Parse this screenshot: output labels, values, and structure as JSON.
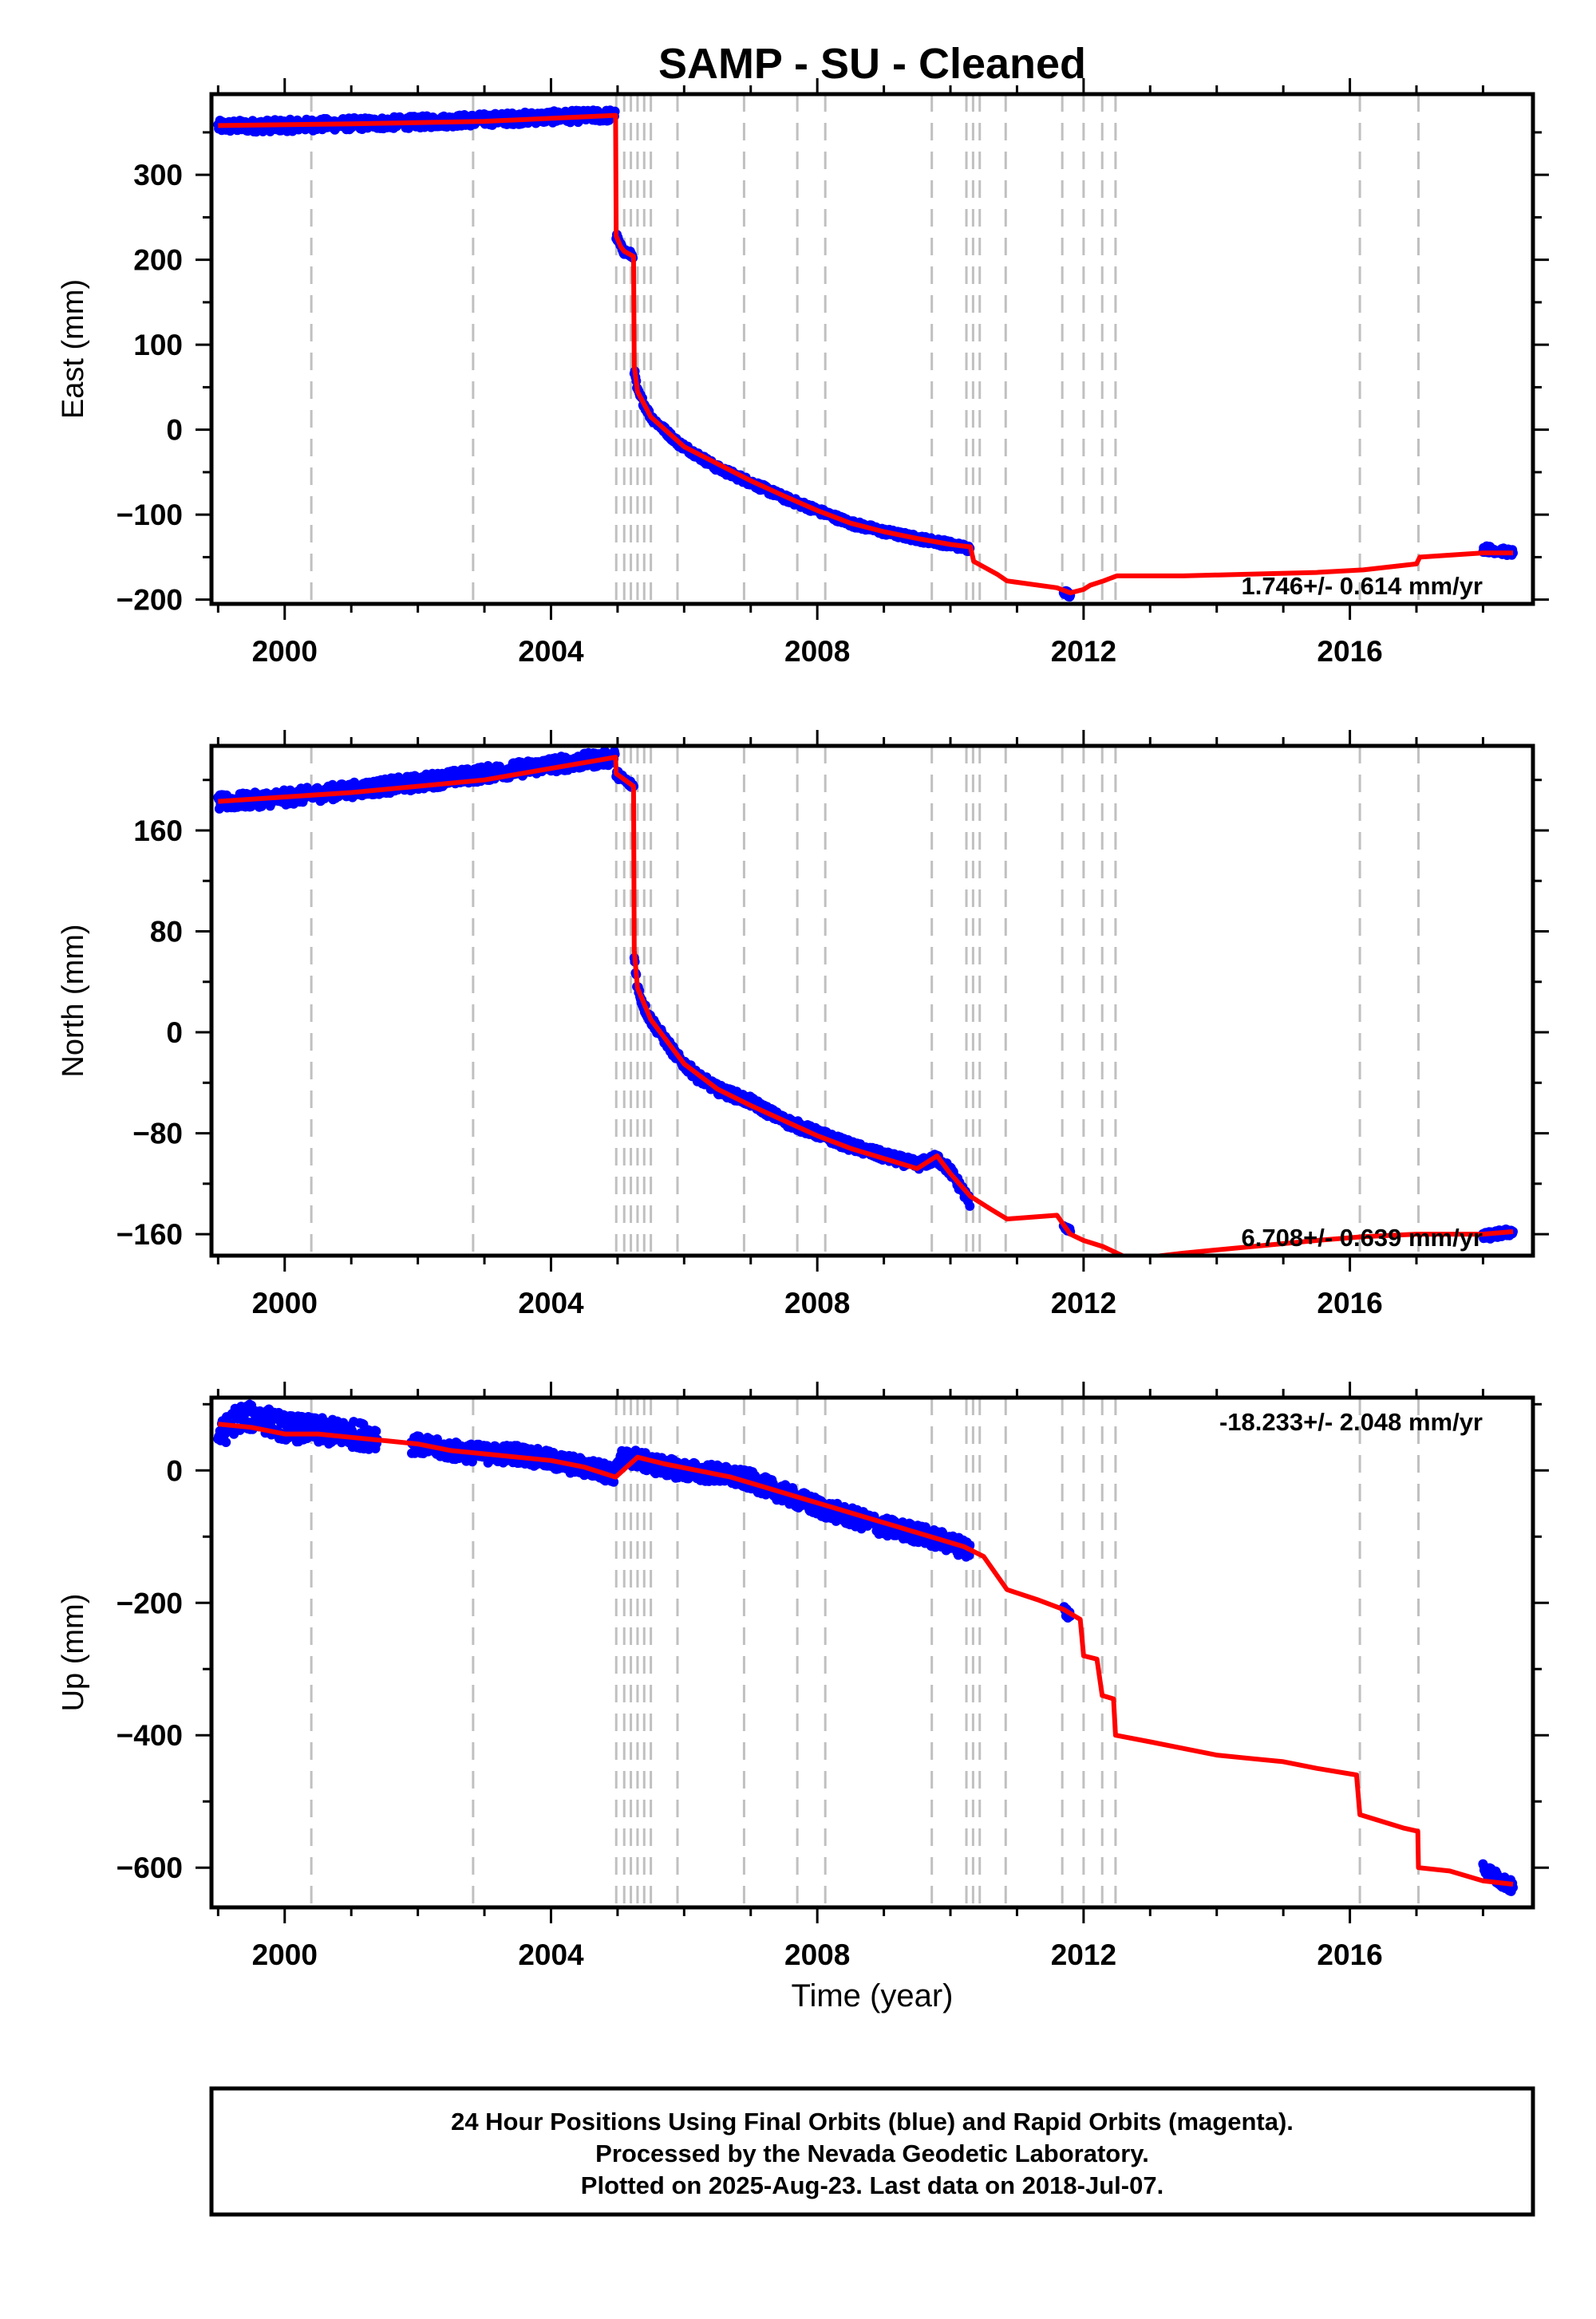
{
  "title": "SAMP  - SU - Cleaned",
  "xlabel": "Time (year)",
  "footer": [
    "24 Hour Positions Using Final Orbits (blue) and Rapid Orbits (magenta).",
    "Processed by the Nevada Geodetic Laboratory.",
    "Plotted on 2025-Aug-23. Last data on 2018-Jul-07."
  ],
  "colors": {
    "data": "#0000ff",
    "model": "#ff0000",
    "event_line": "#c0c0c0",
    "axis": "#000000"
  },
  "chart_data": [
    {
      "type": "scatter",
      "panel": "east",
      "ylabel": "East (mm)",
      "rate_label": "1.746+/- 0.614 mm/yr",
      "xlim": [
        1998.9,
        2018.75
      ],
      "ylim": [
        -205,
        395
      ],
      "x_ticks": [
        2000,
        2004,
        2008,
        2012,
        2016
      ],
      "y_ticks": [
        300,
        200,
        100,
        0,
        -100,
        -200
      ],
      "events": [
        2000.4,
        2002.83,
        2004.98,
        2005.1,
        2005.2,
        2005.3,
        2005.4,
        2005.5,
        2005.9,
        2006.9,
        2007.7,
        2008.12,
        2009.72,
        2010.24,
        2010.34,
        2010.44,
        2010.83,
        2011.68,
        2012.0,
        2012.28,
        2012.48,
        2016.15,
        2017.03
      ],
      "observations": {
        "segments": [
          {
            "x": [
              1999.0,
              2000.0,
              2001.0,
              2002.0,
              2003.0,
              2004.0,
              2004.97
            ],
            "y": [
              357,
              358,
              360,
              362,
              365,
              368,
              370
            ],
            "scatter": 7
          },
          {
            "x": [
              2004.98,
              2005.05,
              2005.1,
              2005.2,
              2005.24
            ],
            "y": [
              228,
              215,
              210,
              206,
              204
            ],
            "scatter": 4
          },
          {
            "x": [
              2005.25,
              2005.3,
              2005.4,
              2005.5,
              2005.7,
              2005.9,
              2006.2,
              2006.5,
              2007.0,
              2007.5,
              2008.0,
              2008.5,
              2009.0,
              2009.5,
              2009.8,
              2010.0,
              2010.3
            ],
            "y": [
              70,
              45,
              30,
              15,
              0,
              -15,
              -30,
              -45,
              -62,
              -80,
              -95,
              -110,
              -120,
              -128,
              -132,
              -135,
              -140
            ],
            "scatter": 4
          },
          {
            "x": [
              2011.7,
              2011.8
            ],
            "y": [
              -190,
              -195
            ],
            "scatter": 3
          },
          {
            "x": [
              2018.0,
              2018.2,
              2018.45
            ],
            "y": [
              -140,
              -142,
              -145
            ],
            "scatter": 4
          }
        ]
      },
      "model": {
        "x": [
          1999.0,
          2001.0,
          2003.0,
          2004.97,
          2004.98,
          2005.05,
          2005.1,
          2005.24,
          2005.25,
          2005.3,
          2005.5,
          2006.0,
          2006.5,
          2007.0,
          2007.5,
          2008.0,
          2008.5,
          2009.0,
          2009.5,
          2010.0,
          2010.3,
          2010.35,
          2010.7,
          2010.85,
          2011.6,
          2011.8,
          2012.0,
          2012.1,
          2012.3,
          2012.4,
          2012.5,
          2013.5,
          2014.5,
          2015.5,
          2016.2,
          2017.0,
          2017.05,
          2018.0,
          2018.45
        ],
        "y": [
          358,
          360,
          363,
          370,
          228,
          215,
          210,
          204,
          75,
          45,
          15,
          -20,
          -40,
          -60,
          -78,
          -95,
          -110,
          -120,
          -128,
          -135,
          -138,
          -155,
          -170,
          -178,
          -186,
          -192,
          -188,
          -183,
          -178,
          -175,
          -172,
          -172,
          -170,
          -168,
          -165,
          -158,
          -150,
          -145,
          -145
        ]
      }
    },
    {
      "type": "scatter",
      "panel": "north",
      "ylabel": "North (mm)",
      "rate_label": "6.708+/- 0.639 mm/yr",
      "xlim": [
        1998.9,
        2018.75
      ],
      "ylim": [
        -177,
        227
      ],
      "x_ticks": [
        2000,
        2004,
        2008,
        2012,
        2016
      ],
      "y_ticks": [
        160,
        80,
        0,
        -80,
        -160
      ],
      "events": [
        2000.4,
        2002.83,
        2004.98,
        2005.1,
        2005.2,
        2005.3,
        2005.4,
        2005.5,
        2005.9,
        2006.9,
        2007.7,
        2008.12,
        2009.72,
        2010.24,
        2010.34,
        2010.44,
        2010.83,
        2011.68,
        2012.0,
        2012.28,
        2012.48,
        2016.15,
        2017.03
      ],
      "observations": {
        "segments": [
          {
            "x": [
              1999.0,
              2000.0,
              2001.0,
              2002.0,
              2003.0,
              2004.0,
              2004.97
            ],
            "y": [
              182,
              186,
              192,
              198,
              205,
              212,
              218
            ],
            "scatter": 6
          },
          {
            "x": [
              2004.98,
              2005.1,
              2005.24
            ],
            "y": [
              205,
              200,
              195
            ],
            "scatter": 3
          },
          {
            "x": [
              2005.25,
              2005.3,
              2005.4,
              2005.5,
              2005.7,
              2005.9,
              2006.2,
              2006.5,
              2007.0,
              2007.5,
              2008.0,
              2008.5,
              2009.0,
              2009.5,
              2009.8,
              2010.0,
              2010.3
            ],
            "y": [
              60,
              35,
              20,
              10,
              -5,
              -20,
              -35,
              -45,
              -55,
              -70,
              -80,
              -90,
              -98,
              -105,
              -100,
              -110,
              -135
            ],
            "scatter": 4
          },
          {
            "x": [
              2011.7,
              2011.8
            ],
            "y": [
              -153,
              -158
            ],
            "scatter": 2
          },
          {
            "x": [
              2018.0,
              2018.2,
              2018.45
            ],
            "y": [
              -162,
              -160,
              -158
            ],
            "scatter": 3
          }
        ]
      },
      "model": {
        "x": [
          1999.0,
          2001.0,
          2003.0,
          2004.97,
          2004.98,
          2005.24,
          2005.25,
          2005.3,
          2005.5,
          2006.0,
          2006.5,
          2007.0,
          2007.5,
          2008.0,
          2008.5,
          2009.0,
          2009.5,
          2009.8,
          2010.0,
          2010.3,
          2010.6,
          2010.85,
          2011.6,
          2011.8,
          2012.0,
          2012.3,
          2012.5,
          2012.7,
          2013.5,
          2014.5,
          2015.5,
          2016.2,
          2017.0,
          2018.0,
          2018.45
        ],
        "y": [
          183,
          190,
          200,
          218,
          205,
          195,
          65,
          35,
          10,
          -25,
          -45,
          -58,
          -70,
          -82,
          -92,
          -100,
          -108,
          -98,
          -112,
          -130,
          -140,
          -148,
          -145,
          -160,
          -165,
          -170,
          -175,
          -180,
          -175,
          -170,
          -165,
          -162,
          -160,
          -160,
          -158
        ]
      }
    },
    {
      "type": "scatter",
      "panel": "up",
      "ylabel": "Up (mm)",
      "rate_label": "-18.233+/- 2.048 mm/yr",
      "xlim": [
        1998.9,
        2018.75
      ],
      "ylim": [
        -660,
        110
      ],
      "x_ticks": [
        2000,
        2004,
        2008,
        2012,
        2016
      ],
      "y_ticks": [
        0,
        -200,
        -400,
        -600
      ],
      "events": [
        2000.4,
        2002.83,
        2004.98,
        2005.1,
        2005.2,
        2005.3,
        2005.4,
        2005.5,
        2005.9,
        2006.9,
        2007.7,
        2008.12,
        2009.72,
        2010.24,
        2010.34,
        2010.44,
        2010.83,
        2011.68,
        2012.0,
        2012.28,
        2012.48,
        2016.15,
        2017.03
      ],
      "observations": {
        "segments": [
          {
            "x": [
              1999.0,
              1999.3,
              1999.6,
              2000.0,
              2000.5,
              2001.0,
              2001.4
            ],
            "y": [
              50,
              80,
              80,
              65,
              60,
              55,
              50
            ],
            "scatter": 20
          },
          {
            "x": [
              2001.9,
              2002.5,
              2003.0,
              2003.5,
              2004.0,
              2004.5,
              2004.97
            ],
            "y": [
              40,
              30,
              25,
              25,
              15,
              5,
              -5
            ],
            "scatter": 14
          },
          {
            "x": [
              2005.0,
              2005.2,
              2005.5,
              2006.0,
              2006.5,
              2007.0,
              2007.5,
              2008.0,
              2008.5,
              2009.0,
              2009.5,
              2010.0,
              2010.3
            ],
            "y": [
              15,
              20,
              10,
              0,
              -5,
              -15,
              -35,
              -55,
              -70,
              -85,
              -95,
              -110,
              -120
            ],
            "scatter": 14
          },
          {
            "x": [
              2011.7,
              2011.8
            ],
            "y": [
              -210,
              -220
            ],
            "scatter": 8
          },
          {
            "x": [
              2018.0,
              2018.2,
              2018.45
            ],
            "y": [
              -600,
              -615,
              -630
            ],
            "scatter": 10
          }
        ]
      },
      "model": {
        "x": [
          1999.0,
          1999.5,
          2000.0,
          2000.5,
          2001.0,
          2001.5,
          2002.0,
          2002.5,
          2003.0,
          2003.5,
          2004.0,
          2004.5,
          2004.97,
          2005.3,
          2005.7,
          2006.2,
          2006.7,
          2007.2,
          2007.7,
          2008.2,
          2008.7,
          2009.2,
          2009.7,
          2010.2,
          2010.5,
          2010.85,
          2011.3,
          2011.7,
          2011.95,
          2012.0,
          2012.2,
          2012.28,
          2012.45,
          2012.48,
          2013.0,
          2013.5,
          2014.0,
          2014.5,
          2015.0,
          2015.5,
          2016.1,
          2016.15,
          2016.8,
          2017.02,
          2017.03,
          2017.5,
          2018.0,
          2018.45
        ],
        "y": [
          70,
          65,
          55,
          55,
          50,
          45,
          40,
          30,
          25,
          20,
          15,
          5,
          -10,
          20,
          10,
          0,
          -10,
          -25,
          -40,
          -55,
          -70,
          -85,
          -100,
          -115,
          -130,
          -180,
          -195,
          -210,
          -225,
          -280,
          -285,
          -340,
          -345,
          -400,
          -410,
          -420,
          -430,
          -435,
          -440,
          -450,
          -460,
          -520,
          -540,
          -545,
          -600,
          -605,
          -620,
          -625
        ]
      }
    }
  ]
}
